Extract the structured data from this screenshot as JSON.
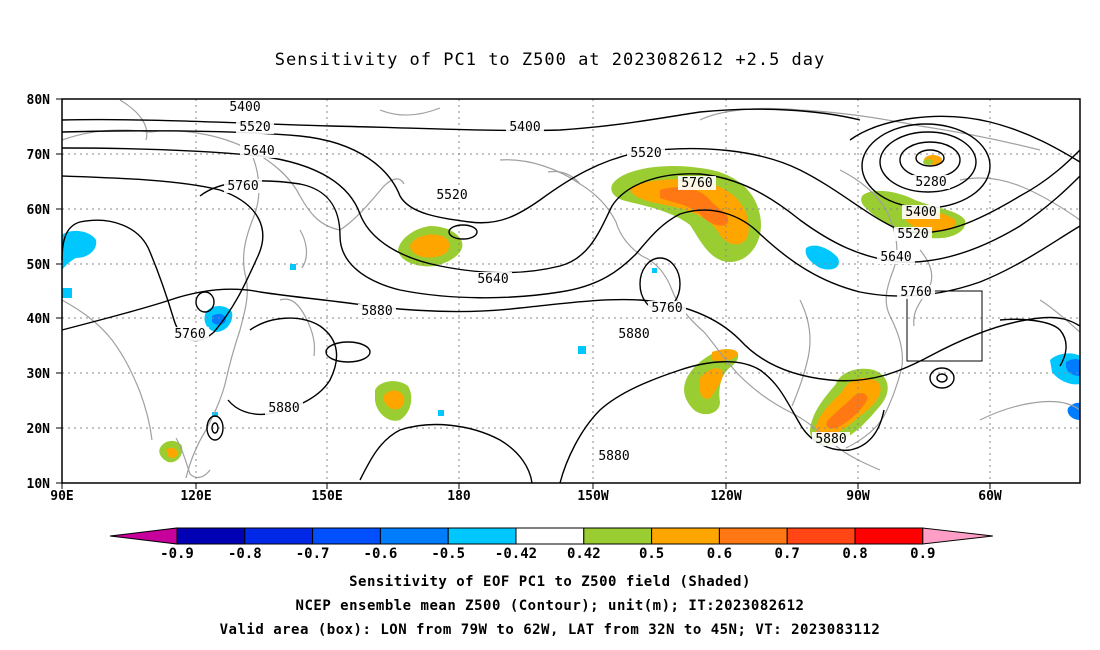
{
  "title": "Sensitivity of PC1 to Z500 at 2023082612 +2.5 day",
  "map": {
    "lon_labels": [
      "90E",
      "120E",
      "150E",
      "180",
      "150W",
      "120W",
      "90W",
      "60W"
    ],
    "lat_labels": [
      "80N",
      "70N",
      "60N",
      "50N",
      "40N",
      "30N",
      "20N",
      "10N"
    ],
    "contour_labels": [
      {
        "text": "5400"
      },
      {
        "text": "5520"
      },
      {
        "text": "5640"
      },
      {
        "text": "5400"
      },
      {
        "text": "5760"
      },
      {
        "text": "5520"
      },
      {
        "text": "5520"
      },
      {
        "text": "5760"
      },
      {
        "text": "5280"
      },
      {
        "text": "5400"
      },
      {
        "text": "5520"
      },
      {
        "text": "5640"
      },
      {
        "text": "5760"
      },
      {
        "text": "5640"
      },
      {
        "text": "5760"
      },
      {
        "text": "5880"
      },
      {
        "text": "5880"
      },
      {
        "text": "5760"
      },
      {
        "text": "5880"
      },
      {
        "text": "5880"
      },
      {
        "text": "5880"
      }
    ],
    "valid_box": {
      "lon_w": -79,
      "lon_e": -62,
      "lat_s": 32,
      "lat_n": 45
    },
    "colors": {
      "contour": "#000000",
      "coast": "#a0a0a0",
      "grid": "#888888"
    }
  },
  "colorbar": {
    "labels": [
      "-0.9",
      "-0.8",
      "-0.7",
      "-0.6",
      "-0.5",
      "-0.42",
      "0.42",
      "0.5",
      "0.6",
      "0.7",
      "0.8",
      "0.9"
    ],
    "colors": [
      "#0000b4",
      "#0028e6",
      "#0050ff",
      "#007dff",
      "#00c8ff",
      "#ffffff",
      "#9acd32",
      "#ffa500",
      "#ff7814",
      "#ff4614",
      "#ff0000"
    ],
    "low_end_color": "#c8009b",
    "high_end_color": "#ff9fc8"
  },
  "captions": {
    "line1": "Sensitivity of EOF PC1 to Z500 field (Shaded)",
    "line2": "NCEP ensemble mean Z500 (Contour); unit(m); IT:2023082612",
    "line3": "Valid area (box): LON from 79W to 62W, LAT from 32N to 45N; VT: 2023083112"
  }
}
